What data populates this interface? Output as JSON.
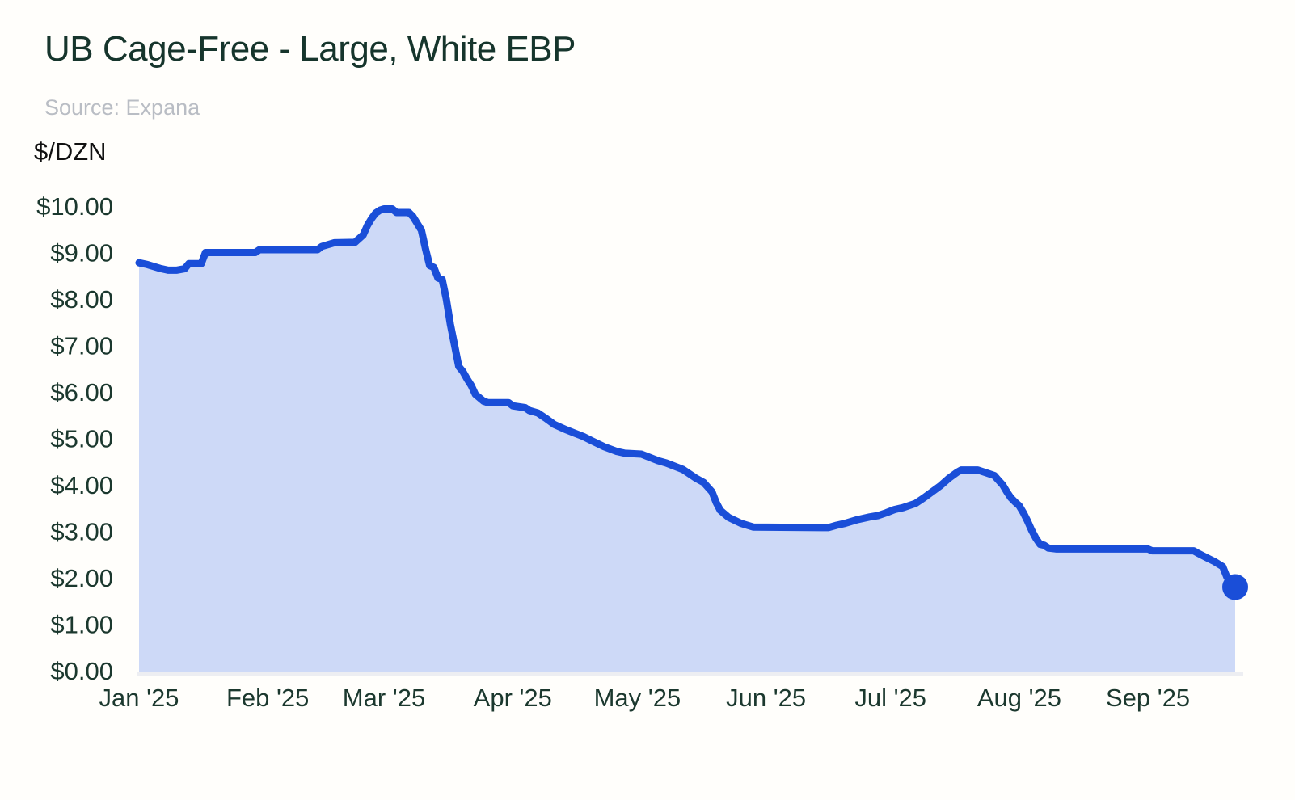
{
  "header": {
    "title": "UB Cage-Free - Large, White EBP",
    "source": "Source: Expana"
  },
  "chart_data": {
    "type": "area",
    "title": "UB Cage-Free - Large, White EBP",
    "source": "Source: Expana",
    "ylabel": "$/DZN",
    "ylim": [
      0,
      10
    ],
    "grid": "off",
    "legend": "none",
    "last_point_marker": true,
    "line_color": "#1a4ed8",
    "fill_color": "#cdd9f7",
    "axis_text_color": "#1b382e",
    "baseline_color": "#edeef2",
    "y_ticks": [
      {
        "label": "$10.00",
        "value": 10
      },
      {
        "label": "$9.00",
        "value": 9
      },
      {
        "label": "$8.00",
        "value": 8
      },
      {
        "label": "$7.00",
        "value": 7
      },
      {
        "label": "$6.00",
        "value": 6
      },
      {
        "label": "$5.00",
        "value": 5
      },
      {
        "label": "$4.00",
        "value": 4
      },
      {
        "label": "$3.00",
        "value": 3
      },
      {
        "label": "$2.00",
        "value": 2
      },
      {
        "label": "$1.00",
        "value": 1
      },
      {
        "label": "$0.00",
        "value": 0
      }
    ],
    "x_ticks": [
      {
        "label": "Jan '25",
        "date": "2025-01-01"
      },
      {
        "label": "Feb '25",
        "date": "2025-02-01"
      },
      {
        "label": "Mar '25",
        "date": "2025-03-01"
      },
      {
        "label": "Apr '25",
        "date": "2025-04-01"
      },
      {
        "label": "May '25",
        "date": "2025-05-01"
      },
      {
        "label": "Jun '25",
        "date": "2025-06-01"
      },
      {
        "label": "Jul '25",
        "date": "2025-07-01"
      },
      {
        "label": "Aug '25",
        "date": "2025-08-01"
      },
      {
        "label": "Sep '25",
        "date": "2025-09-01"
      }
    ],
    "points": [
      {
        "date": "2025-01-01",
        "value": 8.78
      },
      {
        "date": "2025-01-03",
        "value": 8.74
      },
      {
        "date": "2025-01-06",
        "value": 8.66
      },
      {
        "date": "2025-01-08",
        "value": 8.62
      },
      {
        "date": "2025-01-10",
        "value": 8.62
      },
      {
        "date": "2025-01-12",
        "value": 8.65
      },
      {
        "date": "2025-01-13",
        "value": 8.76
      },
      {
        "date": "2025-01-16",
        "value": 8.76
      },
      {
        "date": "2025-01-17",
        "value": 9.0
      },
      {
        "date": "2025-01-29",
        "value": 9.0
      },
      {
        "date": "2025-01-30",
        "value": 9.06
      },
      {
        "date": "2025-02-13",
        "value": 9.06
      },
      {
        "date": "2025-02-14",
        "value": 9.13
      },
      {
        "date": "2025-02-17",
        "value": 9.21
      },
      {
        "date": "2025-02-22",
        "value": 9.22
      },
      {
        "date": "2025-02-24",
        "value": 9.38
      },
      {
        "date": "2025-02-25",
        "value": 9.58
      },
      {
        "date": "2025-02-26",
        "value": 9.73
      },
      {
        "date": "2025-02-27",
        "value": 9.85
      },
      {
        "date": "2025-02-28",
        "value": 9.91
      },
      {
        "date": "2025-03-01",
        "value": 9.94
      },
      {
        "date": "2025-03-03",
        "value": 9.94
      },
      {
        "date": "2025-03-04",
        "value": 9.86
      },
      {
        "date": "2025-03-07",
        "value": 9.86
      },
      {
        "date": "2025-03-08",
        "value": 9.77
      },
      {
        "date": "2025-03-10",
        "value": 9.48
      },
      {
        "date": "2025-03-11",
        "value": 9.08
      },
      {
        "date": "2025-03-12",
        "value": 8.72
      },
      {
        "date": "2025-03-13",
        "value": 8.68
      },
      {
        "date": "2025-03-14",
        "value": 8.45
      },
      {
        "date": "2025-03-15",
        "value": 8.42
      },
      {
        "date": "2025-03-16",
        "value": 8.0
      },
      {
        "date": "2025-03-17",
        "value": 7.45
      },
      {
        "date": "2025-03-18",
        "value": 7.0
      },
      {
        "date": "2025-03-19",
        "value": 6.55
      },
      {
        "date": "2025-03-20",
        "value": 6.44
      },
      {
        "date": "2025-03-21",
        "value": 6.28
      },
      {
        "date": "2025-03-22",
        "value": 6.14
      },
      {
        "date": "2025-03-23",
        "value": 5.95
      },
      {
        "date": "2025-03-25",
        "value": 5.8
      },
      {
        "date": "2025-03-26",
        "value": 5.77
      },
      {
        "date": "2025-03-31",
        "value": 5.77
      },
      {
        "date": "2025-04-01",
        "value": 5.7
      },
      {
        "date": "2025-04-04",
        "value": 5.66
      },
      {
        "date": "2025-04-05",
        "value": 5.6
      },
      {
        "date": "2025-04-07",
        "value": 5.55
      },
      {
        "date": "2025-04-09",
        "value": 5.43
      },
      {
        "date": "2025-04-11",
        "value": 5.3
      },
      {
        "date": "2025-04-14",
        "value": 5.18
      },
      {
        "date": "2025-04-16",
        "value": 5.11
      },
      {
        "date": "2025-04-18",
        "value": 5.04
      },
      {
        "date": "2025-04-20",
        "value": 4.95
      },
      {
        "date": "2025-04-23",
        "value": 4.82
      },
      {
        "date": "2025-04-26",
        "value": 4.72
      },
      {
        "date": "2025-04-28",
        "value": 4.68
      },
      {
        "date": "2025-05-02",
        "value": 4.66
      },
      {
        "date": "2025-05-04",
        "value": 4.59
      },
      {
        "date": "2025-05-06",
        "value": 4.52
      },
      {
        "date": "2025-05-08",
        "value": 4.47
      },
      {
        "date": "2025-05-10",
        "value": 4.4
      },
      {
        "date": "2025-05-12",
        "value": 4.33
      },
      {
        "date": "2025-05-15",
        "value": 4.15
      },
      {
        "date": "2025-05-17",
        "value": 4.05
      },
      {
        "date": "2025-05-19",
        "value": 3.85
      },
      {
        "date": "2025-05-20",
        "value": 3.62
      },
      {
        "date": "2025-05-21",
        "value": 3.45
      },
      {
        "date": "2025-05-23",
        "value": 3.3
      },
      {
        "date": "2025-05-26",
        "value": 3.17
      },
      {
        "date": "2025-05-29",
        "value": 3.09
      },
      {
        "date": "2025-06-16",
        "value": 3.08
      },
      {
        "date": "2025-06-18",
        "value": 3.13
      },
      {
        "date": "2025-06-20",
        "value": 3.17
      },
      {
        "date": "2025-06-23",
        "value": 3.25
      },
      {
        "date": "2025-06-26",
        "value": 3.31
      },
      {
        "date": "2025-06-28",
        "value": 3.34
      },
      {
        "date": "2025-06-30",
        "value": 3.4
      },
      {
        "date": "2025-07-02",
        "value": 3.47
      },
      {
        "date": "2025-07-04",
        "value": 3.51
      },
      {
        "date": "2025-07-07",
        "value": 3.6
      },
      {
        "date": "2025-07-09",
        "value": 3.72
      },
      {
        "date": "2025-07-11",
        "value": 3.85
      },
      {
        "date": "2025-07-13",
        "value": 3.98
      },
      {
        "date": "2025-07-15",
        "value": 4.14
      },
      {
        "date": "2025-07-17",
        "value": 4.27
      },
      {
        "date": "2025-07-18",
        "value": 4.32
      },
      {
        "date": "2025-07-22",
        "value": 4.32
      },
      {
        "date": "2025-07-24",
        "value": 4.26
      },
      {
        "date": "2025-07-26",
        "value": 4.2
      },
      {
        "date": "2025-07-27",
        "value": 4.1
      },
      {
        "date": "2025-07-28",
        "value": 4.0
      },
      {
        "date": "2025-07-29",
        "value": 3.85
      },
      {
        "date": "2025-07-30",
        "value": 3.72
      },
      {
        "date": "2025-07-31",
        "value": 3.63
      },
      {
        "date": "2025-08-01",
        "value": 3.55
      },
      {
        "date": "2025-08-02",
        "value": 3.4
      },
      {
        "date": "2025-08-03",
        "value": 3.22
      },
      {
        "date": "2025-08-04",
        "value": 3.02
      },
      {
        "date": "2025-08-05",
        "value": 2.85
      },
      {
        "date": "2025-08-06",
        "value": 2.72
      },
      {
        "date": "2025-08-07",
        "value": 2.7
      },
      {
        "date": "2025-08-08",
        "value": 2.64
      },
      {
        "date": "2025-08-10",
        "value": 2.62
      },
      {
        "date": "2025-09-01",
        "value": 2.62
      },
      {
        "date": "2025-09-02",
        "value": 2.58
      },
      {
        "date": "2025-09-12",
        "value": 2.58
      },
      {
        "date": "2025-09-13",
        "value": 2.53
      },
      {
        "date": "2025-09-15",
        "value": 2.44
      },
      {
        "date": "2025-09-17",
        "value": 2.35
      },
      {
        "date": "2025-09-19",
        "value": 2.24
      },
      {
        "date": "2025-09-20",
        "value": 2.02
      },
      {
        "date": "2025-09-22",
        "value": 1.8
      }
    ]
  }
}
